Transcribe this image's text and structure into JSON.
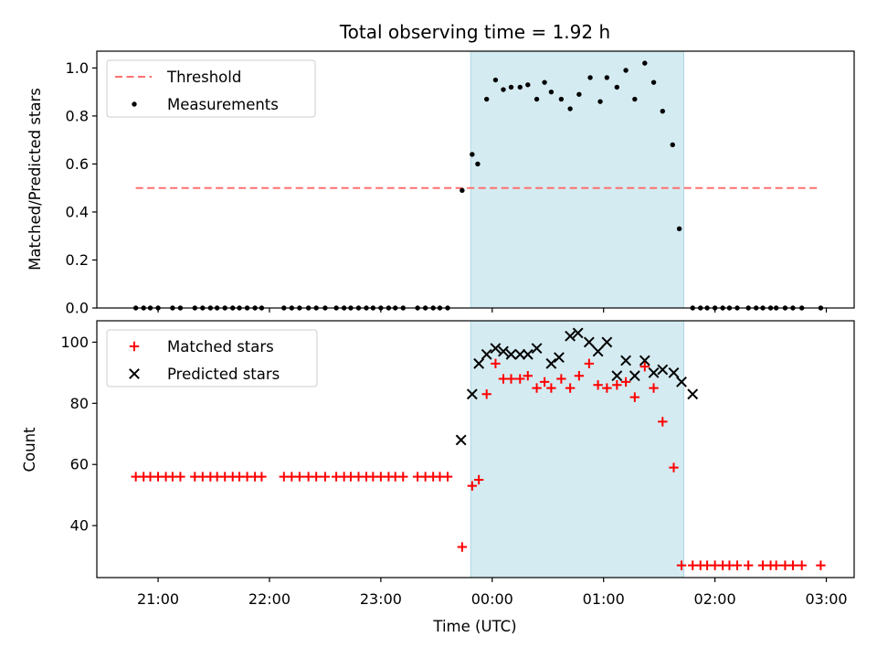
{
  "chart_data": {
    "title": "Total observing time = 1.92 h",
    "xlabel": "Time (UTC)",
    "x_ticks": [
      "21:00",
      "22:00",
      "23:00",
      "00:00",
      "01:00",
      "02:00",
      "03:00"
    ],
    "x_tick_hours": [
      21,
      22,
      23,
      24,
      25,
      26,
      27
    ],
    "x_range_hours": [
      20.45,
      27.25
    ],
    "shaded_span_hours": [
      23.807,
      25.72
    ],
    "shaded_color": "#d4ebf1",
    "panels": [
      {
        "type": "scatter",
        "ylabel": "Matched/Predicted stars",
        "ylim": [
          0,
          1.07
        ],
        "y_ticks": [
          "0.0",
          "0.2",
          "0.4",
          "0.6",
          "0.8",
          "1.0"
        ],
        "y_tick_values": [
          0,
          0.2,
          0.4,
          0.6,
          0.8,
          1.0
        ],
        "legend": "top-left",
        "series": [
          {
            "name": "Threshold",
            "kind": "dashed-line",
            "color": "#ff7070",
            "x": [
              20.8,
              26.95
            ],
            "y": [
              0.5,
              0.5
            ]
          },
          {
            "name": "Measurements",
            "kind": "dot",
            "color": "#000000",
            "x": [
              20.8,
              20.87,
              20.93,
              21.0,
              21.13,
              21.2,
              21.33,
              21.4,
              21.47,
              21.53,
              21.6,
              21.67,
              21.73,
              21.8,
              21.87,
              21.93,
              22.13,
              22.2,
              22.27,
              22.35,
              22.42,
              22.5,
              22.6,
              22.67,
              22.73,
              22.8,
              22.87,
              22.93,
              23.0,
              23.07,
              23.13,
              23.2,
              23.33,
              23.4,
              23.47,
              23.53,
              23.6,
              23.73,
              23.82,
              23.87,
              23.95,
              24.03,
              24.1,
              24.17,
              24.25,
              24.32,
              24.4,
              24.47,
              24.53,
              24.62,
              24.7,
              24.78,
              24.88,
              24.97,
              25.03,
              25.12,
              25.2,
              25.28,
              25.37,
              25.45,
              25.53,
              25.62,
              25.68,
              25.8,
              25.87,
              25.93,
              26.0,
              26.07,
              26.13,
              26.2,
              26.3,
              26.37,
              26.43,
              26.5,
              26.55,
              26.63,
              26.7,
              26.78,
              26.95
            ],
            "y": [
              0,
              0,
              0,
              0,
              0,
              0,
              0,
              0,
              0,
              0,
              0,
              0,
              0,
              0,
              0,
              0,
              0,
              0,
              0,
              0,
              0,
              0,
              0,
              0,
              0,
              0,
              0,
              0,
              0,
              0,
              0,
              0,
              0,
              0,
              0,
              0,
              0,
              0.49,
              0.64,
              0.6,
              0.87,
              0.95,
              0.91,
              0.92,
              0.92,
              0.93,
              0.87,
              0.94,
              0.9,
              0.87,
              0.83,
              0.89,
              0.96,
              0.86,
              0.96,
              0.92,
              0.99,
              0.87,
              1.02,
              0.94,
              0.82,
              0.68,
              0.33,
              0,
              0,
              0,
              0,
              0,
              0,
              0,
              0,
              0,
              0,
              0,
              0,
              0,
              0,
              0,
              0
            ]
          }
        ]
      },
      {
        "type": "scatter",
        "ylabel": "Count",
        "ylim": [
          23,
          107
        ],
        "y_ticks": [
          "40",
          "60",
          "80",
          "100"
        ],
        "y_tick_values": [
          40,
          60,
          80,
          100
        ],
        "legend": "top-left",
        "series": [
          {
            "name": "Matched stars",
            "kind": "plus",
            "color": "#ff0000",
            "x": [
              20.8,
              20.87,
              20.93,
              21.0,
              21.07,
              21.13,
              21.2,
              21.33,
              21.4,
              21.47,
              21.53,
              21.6,
              21.67,
              21.73,
              21.8,
              21.87,
              21.93,
              22.13,
              22.2,
              22.27,
              22.35,
              22.42,
              22.5,
              22.6,
              22.67,
              22.73,
              22.8,
              22.87,
              22.93,
              23.0,
              23.07,
              23.13,
              23.2,
              23.33,
              23.4,
              23.47,
              23.53,
              23.6,
              23.73,
              23.82,
              23.88,
              23.95,
              24.03,
              24.1,
              24.17,
              24.25,
              24.32,
              24.4,
              24.47,
              24.53,
              24.62,
              24.7,
              24.78,
              24.87,
              24.95,
              25.03,
              25.12,
              25.2,
              25.28,
              25.37,
              25.45,
              25.53,
              25.63,
              25.7,
              25.8,
              25.87,
              25.93,
              26.0,
              26.07,
              26.13,
              26.2,
              26.3,
              26.43,
              26.5,
              26.55,
              26.63,
              26.7,
              26.78,
              26.95
            ],
            "y": [
              56,
              56,
              56,
              56,
              56,
              56,
              56,
              56,
              56,
              56,
              56,
              56,
              56,
              56,
              56,
              56,
              56,
              56,
              56,
              56,
              56,
              56,
              56,
              56,
              56,
              56,
              56,
              56,
              56,
              56,
              56,
              56,
              56,
              56,
              56,
              56,
              56,
              56,
              33,
              53,
              55,
              83,
              93,
              88,
              88,
              88,
              89,
              85,
              87,
              85,
              88,
              85,
              89,
              93,
              86,
              85,
              86,
              87,
              82,
              92,
              85,
              74,
              59,
              27,
              27,
              27,
              27,
              27,
              27,
              27,
              27,
              27,
              27,
              27,
              27,
              27,
              27,
              27,
              27
            ]
          },
          {
            "name": "Predicted stars",
            "kind": "cross",
            "color": "#000000",
            "x": [
              23.72,
              23.82,
              23.88,
              23.95,
              24.03,
              24.1,
              24.17,
              24.25,
              24.32,
              24.4,
              24.53,
              24.6,
              24.7,
              24.77,
              24.87,
              24.95,
              25.03,
              25.12,
              25.2,
              25.28,
              25.37,
              25.45,
              25.53,
              25.63,
              25.7,
              25.8
            ],
            "y": [
              68,
              83,
              93,
              96,
              98,
              97,
              96,
              96,
              96,
              98,
              93,
              95,
              102,
              103,
              100,
              97,
              100,
              89,
              94,
              89,
              94,
              90,
              91,
              90,
              87,
              83
            ]
          }
        ]
      }
    ]
  }
}
